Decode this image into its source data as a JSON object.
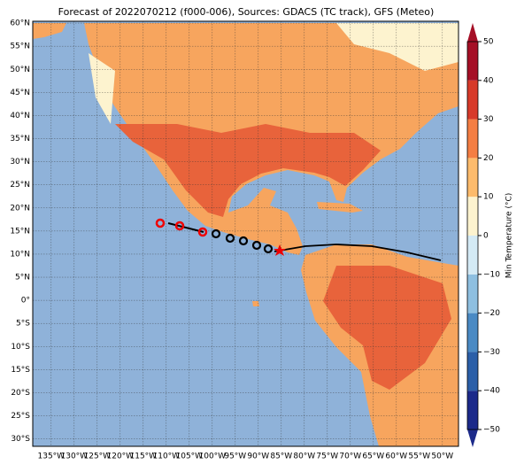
{
  "title": "Forecast of 2022070212 (f000-006), Sources: GDACS (TC track), GFS (Meteo)",
  "map": {
    "lat_range": [
      -31.6,
      60.4
    ],
    "lon_range": [
      -139,
      -46.5
    ],
    "lat_ticks": [
      {
        "value": 60,
        "label": "60°N"
      },
      {
        "value": 55,
        "label": "55°N"
      },
      {
        "value": 50,
        "label": "50°N"
      },
      {
        "value": 45,
        "label": "45°N"
      },
      {
        "value": 40,
        "label": "40°N"
      },
      {
        "value": 35,
        "label": "35°N"
      },
      {
        "value": 30,
        "label": "30°N"
      },
      {
        "value": 25,
        "label": "25°N"
      },
      {
        "value": 20,
        "label": "20°N"
      },
      {
        "value": 15,
        "label": "15°N"
      },
      {
        "value": 10,
        "label": "10°N"
      },
      {
        "value": 5,
        "label": "5°N"
      },
      {
        "value": 0,
        "label": "0°"
      },
      {
        "value": -5,
        "label": "5°S"
      },
      {
        "value": -10,
        "label": "10°S"
      },
      {
        "value": -15,
        "label": "15°S"
      },
      {
        "value": -20,
        "label": "20°S"
      },
      {
        "value": -25,
        "label": "25°S"
      },
      {
        "value": -30,
        "label": "30°S"
      }
    ],
    "lon_ticks": [
      {
        "value": -135,
        "label": "135°W"
      },
      {
        "value": -130,
        "label": "130°W"
      },
      {
        "value": -125,
        "label": "125°W"
      },
      {
        "value": -120,
        "label": "120°W"
      },
      {
        "value": -115,
        "label": "115°W"
      },
      {
        "value": -110,
        "label": "110°W"
      },
      {
        "value": -105,
        "label": "105°W"
      },
      {
        "value": -100,
        "label": "100°W"
      },
      {
        "value": -95,
        "label": "95°W"
      },
      {
        "value": -90,
        "label": "90°W"
      },
      {
        "value": -85,
        "label": "85°W"
      },
      {
        "value": -80,
        "label": "80°W"
      },
      {
        "value": -75,
        "label": "75°W"
      },
      {
        "value": -70,
        "label": "70°W"
      },
      {
        "value": -65,
        "label": "65°W"
      },
      {
        "value": -60,
        "label": "60°W"
      },
      {
        "value": -55,
        "label": "55°W"
      },
      {
        "value": -50,
        "label": "50°W"
      }
    ]
  },
  "colorbar": {
    "label": "Min Temperature (°C)",
    "range": [
      -50,
      50
    ],
    "ticks": [
      {
        "value": -50,
        "label": "−50"
      },
      {
        "value": -40,
        "label": "−40"
      },
      {
        "value": -30,
        "label": "−30"
      },
      {
        "value": -20,
        "label": "−20"
      },
      {
        "value": -10,
        "label": "−10"
      },
      0,
      10,
      20,
      30,
      40,
      50
    ],
    "colors": [
      "#1c2a8a",
      "#2b5fa8",
      "#4a8ac4",
      "#8ebfe0",
      "#d4eaf5",
      "#fdf3cf",
      "#fdbb6c",
      "#f47e43",
      "#d73a2a",
      "#a50f26"
    ]
  }
}
